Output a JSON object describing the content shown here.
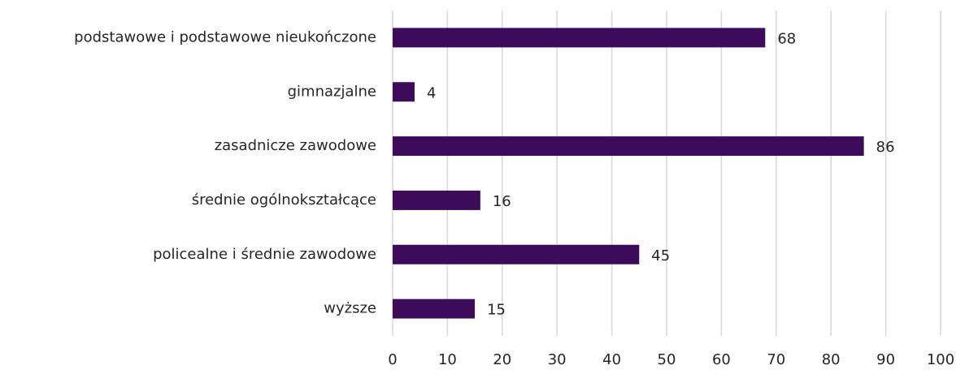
{
  "chart_data": {
    "type": "bar",
    "orientation": "horizontal",
    "categories": [
      "podstawowe i podstawowe nieukończone",
      "gimnazjalne",
      "zasadnicze zawodowe",
      "średnie ogólnokształcące",
      "policealne i średnie zawodowe",
      "wyższe"
    ],
    "values": [
      68,
      4,
      86,
      16,
      45,
      15
    ],
    "color": "#3c0b5a",
    "xlim": [
      0,
      100
    ],
    "xticks": [
      0,
      10,
      20,
      30,
      40,
      50,
      60,
      70,
      80,
      90,
      100
    ],
    "grid": true
  }
}
